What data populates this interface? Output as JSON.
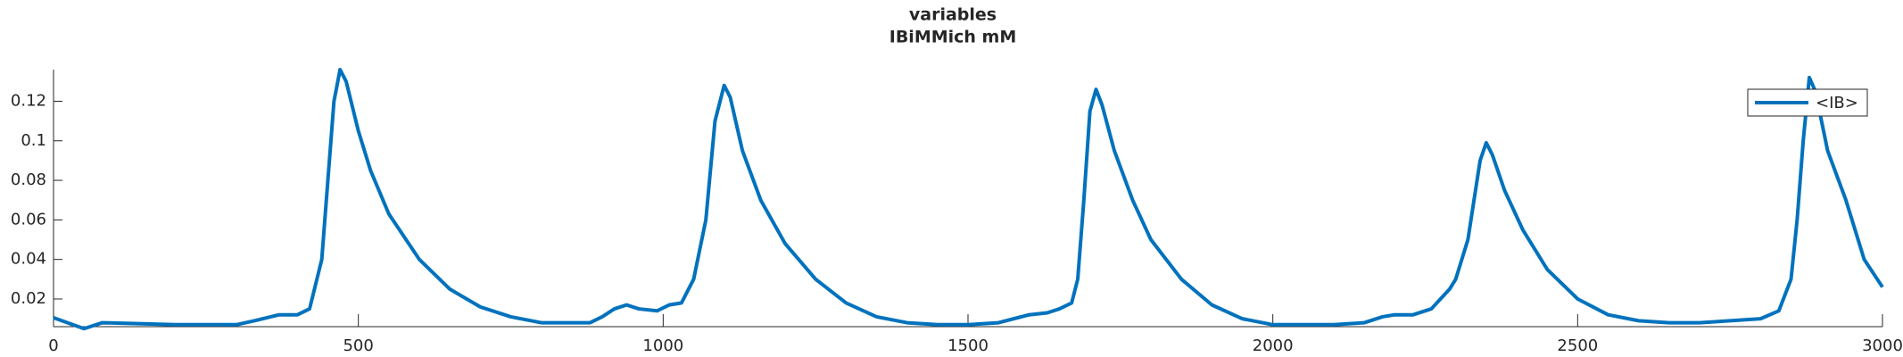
{
  "chart_data": {
    "type": "line",
    "title": "variables",
    "subtitle": "IBiMMich mM",
    "x": [
      0,
      50,
      80,
      200,
      300,
      330,
      370,
      400,
      420,
      440,
      450,
      460,
      470,
      480,
      500,
      520,
      550,
      600,
      650,
      700,
      750,
      800,
      850,
      880,
      900,
      920,
      940,
      960,
      990,
      1010,
      1030,
      1050,
      1070,
      1085,
      1100,
      1110,
      1130,
      1160,
      1200,
      1250,
      1300,
      1350,
      1400,
      1450,
      1500,
      1550,
      1600,
      1630,
      1650,
      1670,
      1680,
      1690,
      1700,
      1710,
      1720,
      1740,
      1770,
      1800,
      1850,
      1900,
      1950,
      2000,
      2100,
      2150,
      2180,
      2200,
      2230,
      2260,
      2290,
      2300,
      2320,
      2340,
      2350,
      2360,
      2380,
      2410,
      2450,
      2500,
      2550,
      2600,
      2650,
      2700,
      2750,
      2800,
      2830,
      2850,
      2860,
      2870,
      2880,
      2890,
      2910,
      2940,
      2970,
      3000
    ],
    "series": [
      {
        "name": "<IB>",
        "color": "#0072bd",
        "values": [
          0.0105,
          0.005,
          0.008,
          0.007,
          0.007,
          0.009,
          0.012,
          0.012,
          0.015,
          0.04,
          0.08,
          0.12,
          0.136,
          0.13,
          0.105,
          0.085,
          0.063,
          0.04,
          0.025,
          0.016,
          0.011,
          0.008,
          0.008,
          0.008,
          0.011,
          0.015,
          0.017,
          0.015,
          0.014,
          0.017,
          0.018,
          0.03,
          0.06,
          0.11,
          0.128,
          0.122,
          0.095,
          0.07,
          0.048,
          0.03,
          0.018,
          0.011,
          0.008,
          0.007,
          0.007,
          0.008,
          0.012,
          0.013,
          0.015,
          0.018,
          0.03,
          0.07,
          0.115,
          0.126,
          0.118,
          0.095,
          0.07,
          0.05,
          0.03,
          0.017,
          0.01,
          0.007,
          0.007,
          0.008,
          0.011,
          0.012,
          0.012,
          0.015,
          0.025,
          0.03,
          0.05,
          0.09,
          0.099,
          0.093,
          0.075,
          0.055,
          0.035,
          0.02,
          0.012,
          0.009,
          0.008,
          0.008,
          0.009,
          0.01,
          0.014,
          0.03,
          0.06,
          0.1,
          0.132,
          0.125,
          0.095,
          0.07,
          0.04,
          0.026
        ]
      }
    ],
    "xlim": [
      0,
      3000
    ],
    "xticks": [
      0,
      500,
      1000,
      1500,
      2000,
      2500,
      3000
    ],
    "ylim": [
      0.006,
      0.136
    ],
    "yticks": [
      0.02,
      0.04,
      0.06,
      0.08,
      0.1,
      0.12
    ],
    "legend": "top-right"
  }
}
